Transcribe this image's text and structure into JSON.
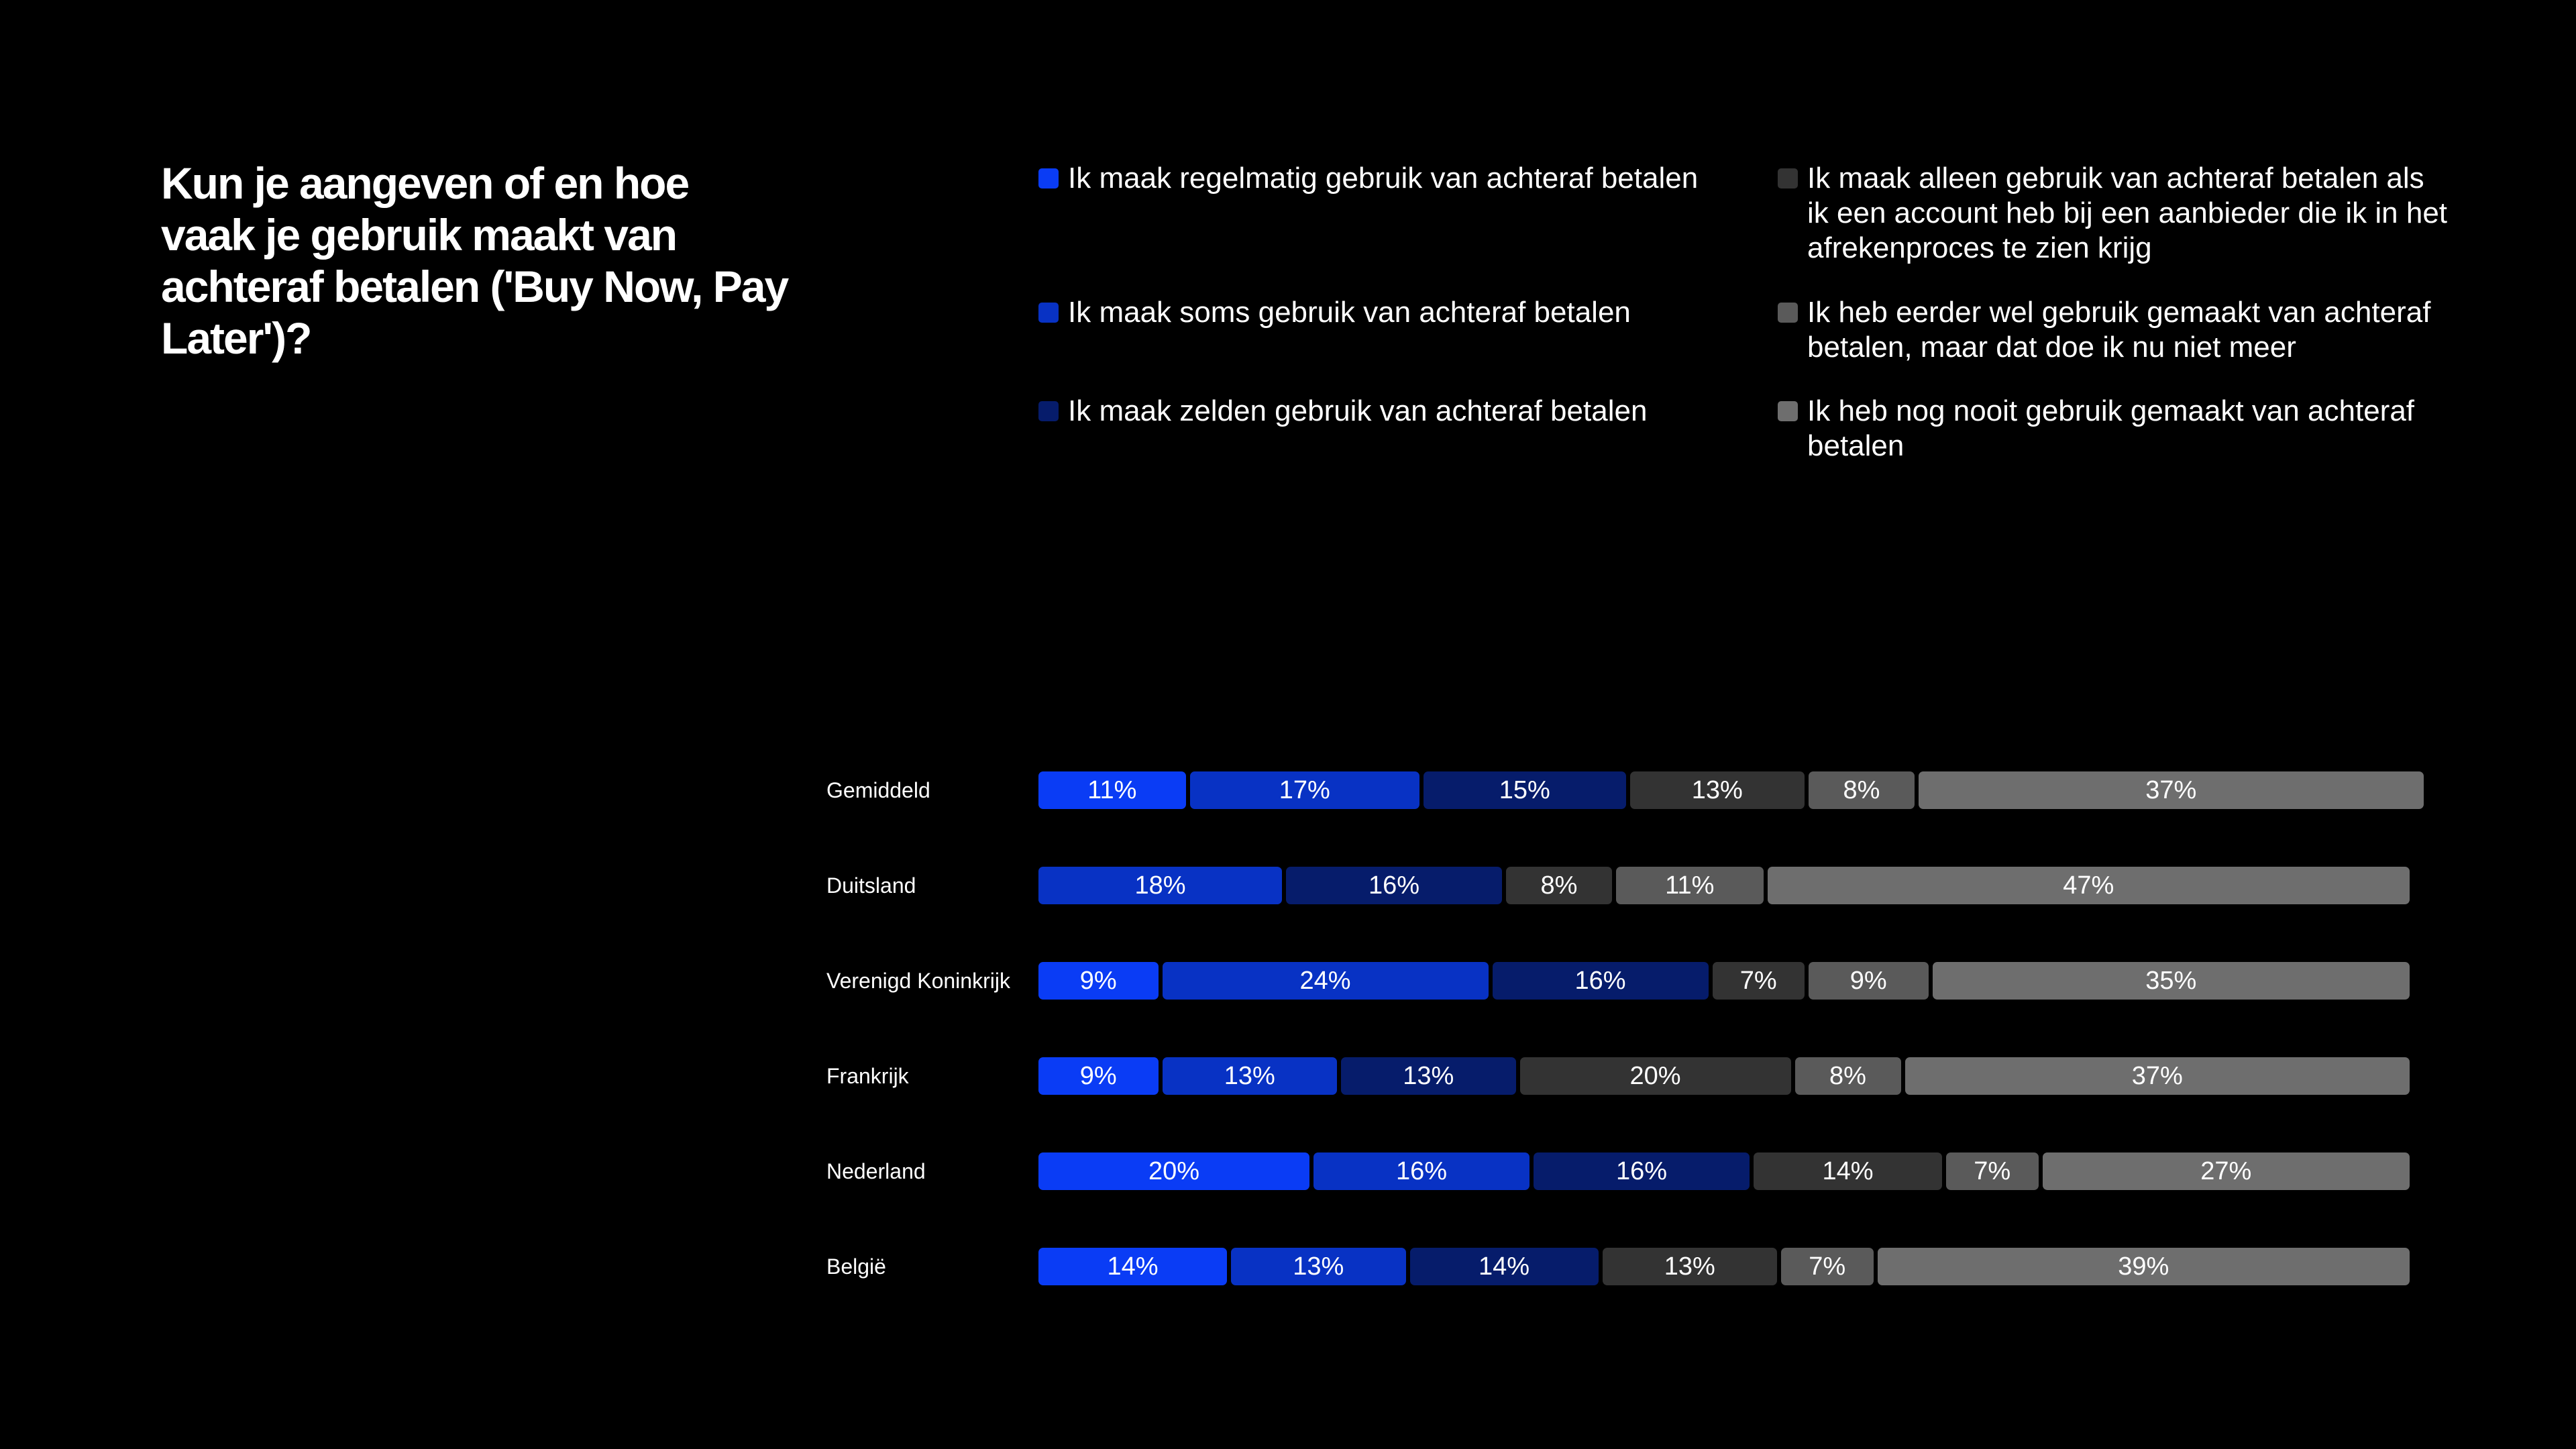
{
  "chart_data": {
    "type": "bar",
    "orientation": "horizontal",
    "stacked": true,
    "title": "Kun je aangeven of en hoe vaak je gebruik maakt van achteraf betalen ('Buy Now, Pay Later')?",
    "categories": [
      "Gemiddeld",
      "Duitsland",
      "Verenigd Koninkrijk",
      "Frankrijk",
      "Nederland",
      "België"
    ],
    "series": [
      {
        "name": "Ik maak regelmatig gebruik van achteraf betalen",
        "color": "#0a3cf5",
        "values": [
          11,
          0,
          9,
          9,
          20,
          14
        ]
      },
      {
        "name": "Ik maak soms gebruik van achteraf betalen",
        "color": "#0832c4",
        "values": [
          17,
          18,
          24,
          13,
          16,
          13
        ]
      },
      {
        "name": "Ik maak zelden gebruik van achteraf betalen",
        "color": "#061c6b",
        "values": [
          15,
          16,
          16,
          13,
          16,
          14
        ]
      },
      {
        "name": "Ik maak alleen gebruik van achteraf betalen als ik een account heb bij een aanbieder die ik in het afrekenproces te zien krijg",
        "color": "#333333",
        "values": [
          13,
          8,
          7,
          20,
          14,
          13
        ]
      },
      {
        "name": "Ik heb eerder wel gebruik gemaakt van achteraf betalen, maar dat doe ik nu niet meer",
        "color": "#5a5a5a",
        "values": [
          8,
          11,
          9,
          8,
          7,
          7
        ]
      },
      {
        "name": "Ik heb nog nooit gebruik gemaakt van achteraf betalen",
        "color": "#6e6e6e",
        "values": [
          37,
          47,
          35,
          37,
          27,
          39
        ]
      }
    ],
    "value_suffix": "%",
    "legend": "top"
  }
}
